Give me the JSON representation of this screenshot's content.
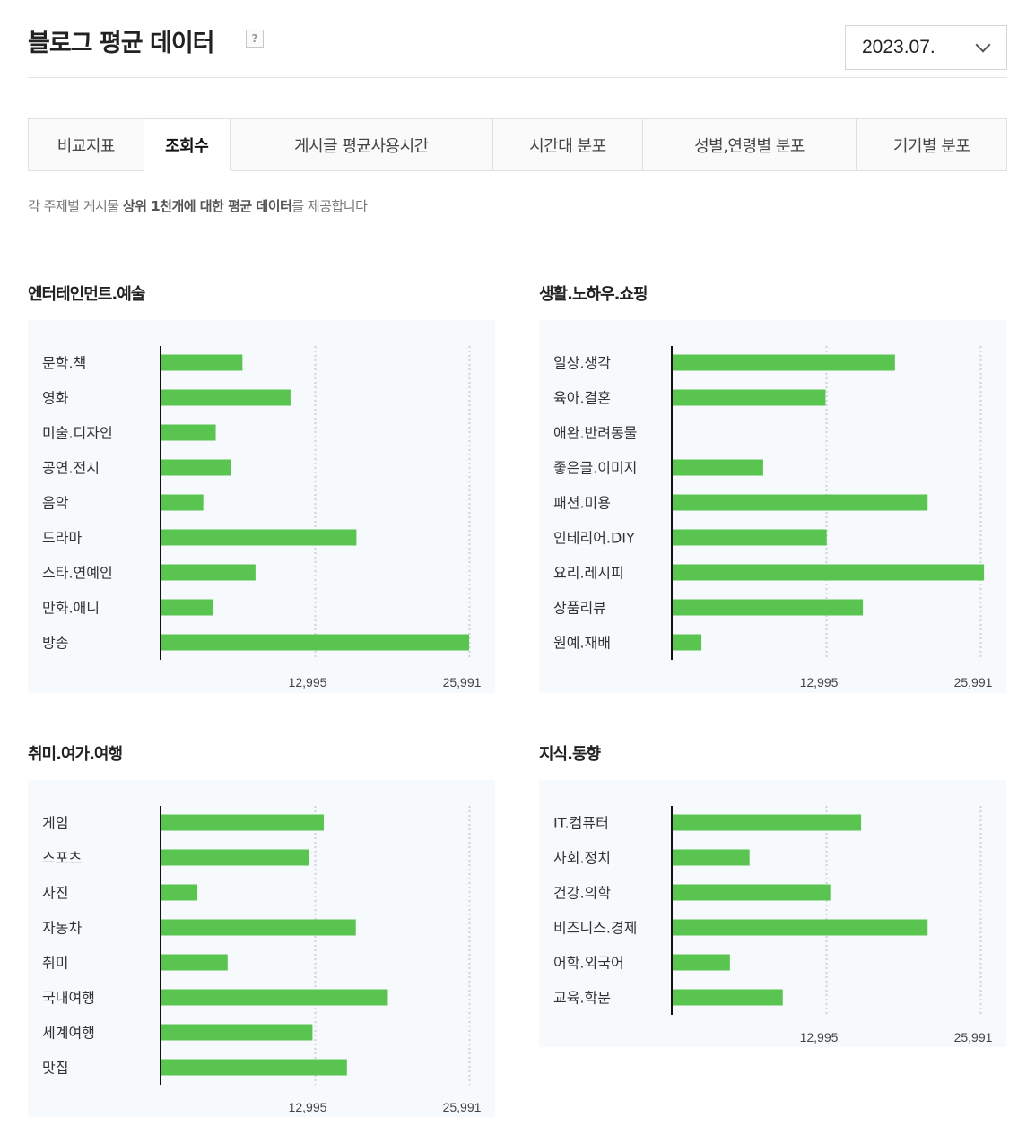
{
  "header": {
    "title": "블로그 평균 데이터",
    "help_icon": "?",
    "month": "2023.07."
  },
  "tabs": [
    {
      "label": "비교지표",
      "active": false
    },
    {
      "label": "조회수",
      "active": true
    },
    {
      "label": "게시글 평균사용시간",
      "active": false
    },
    {
      "label": "시간대 분포",
      "active": false
    },
    {
      "label": "성별,연령별 분포",
      "active": false
    },
    {
      "label": "기기별 분포",
      "active": false
    }
  ],
  "description": {
    "prefix": "각 주제별 게시물 ",
    "bold": "상위 1천개에 대한 평균 데이터",
    "suffix": "를 제공합니다"
  },
  "colors": {
    "bar": "#5ac451",
    "axis": "#111111",
    "gridline": "#d0d4d8",
    "panel_bg": "#f6fafd"
  },
  "chart_data": [
    {
      "type": "bar",
      "orientation": "horizontal",
      "title": "엔터테인먼트.예술",
      "categories": [
        "문학.책",
        "영화",
        "미술.디자인",
        "공연.전시",
        "음악",
        "드라마",
        "스타.연예인",
        "만화.애니",
        "방송"
      ],
      "values": [
        6900,
        10950,
        4650,
        5950,
        3600,
        16500,
        8000,
        4400,
        25991
      ],
      "xticks": [
        12995,
        25991
      ],
      "xtick_labels": [
        "12,995",
        "25,991"
      ],
      "xlim": [
        0,
        25991
      ],
      "grid": true
    },
    {
      "type": "bar",
      "orientation": "horizontal",
      "title": "생활.노하우.쇼핑",
      "categories": [
        "일상.생각",
        "육아.결혼",
        "애완.반려동물",
        "좋은글.이미지",
        "패션.미용",
        "인테리어.DIY",
        "요리.레시피",
        "상품리뷰",
        "원예.재배"
      ],
      "values": [
        18800,
        12950,
        0,
        7700,
        21550,
        13050,
        26300,
        16100,
        2500
      ],
      "xticks": [
        12995,
        25991
      ],
      "xtick_labels": [
        "12,995",
        "25,991"
      ],
      "xlim": [
        0,
        25991
      ],
      "grid": true
    },
    {
      "type": "bar",
      "orientation": "horizontal",
      "title": "취미.여가.여행",
      "categories": [
        "게임",
        "스포츠",
        "사진",
        "자동차",
        "취미",
        "국내여행",
        "세계여행",
        "맛집"
      ],
      "values": [
        13750,
        12500,
        3100,
        16450,
        5650,
        19150,
        12800,
        15700
      ],
      "xticks": [
        12995,
        25991
      ],
      "xtick_labels": [
        "12,995",
        "25,991"
      ],
      "xlim": [
        0,
        25991
      ],
      "grid": true
    },
    {
      "type": "bar",
      "orientation": "horizontal",
      "title": "지식.동향",
      "categories": [
        "IT.컴퓨터",
        "사회.정치",
        "건강.의학",
        "비즈니스.경제",
        "어학.외국어",
        "교육.학문"
      ],
      "values": [
        15950,
        6550,
        13350,
        21550,
        4900,
        9350
      ],
      "xticks": [
        12995,
        25991
      ],
      "xtick_labels": [
        "12,995",
        "25,991"
      ],
      "xlim": [
        0,
        25991
      ],
      "grid": true
    }
  ]
}
